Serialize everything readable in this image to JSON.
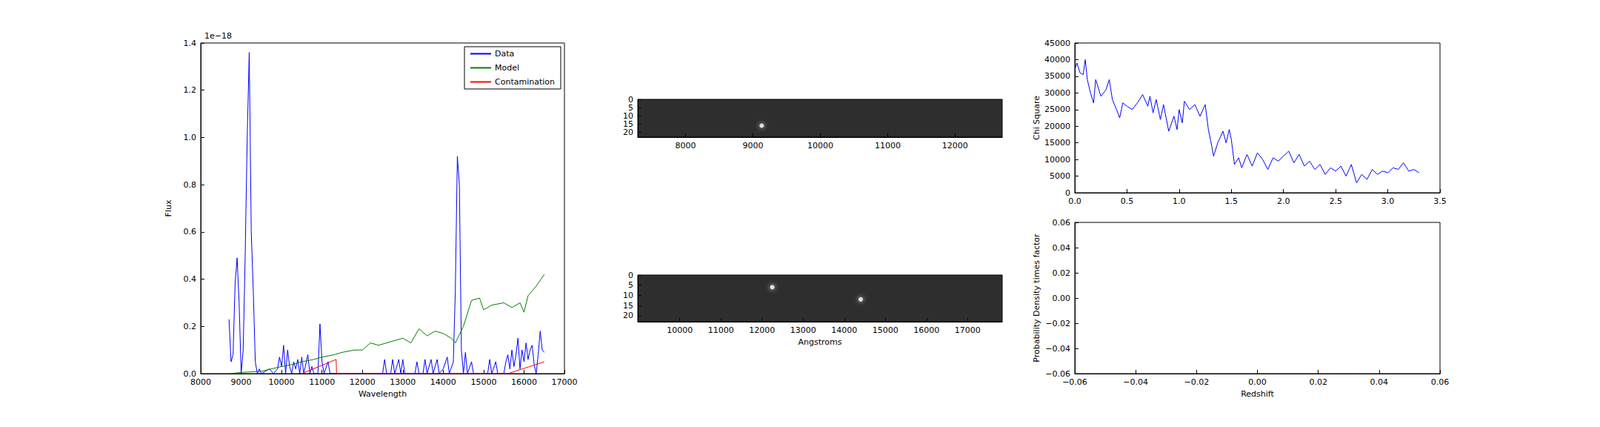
{
  "chart_data": [
    {
      "type": "line",
      "xlabel": "Wavelength",
      "ylabel": "Flux",
      "offset_label": "1e−18",
      "xlim": [
        8000,
        17000
      ],
      "xticks": [
        8000,
        9000,
        10000,
        11000,
        12000,
        13000,
        14000,
        15000,
        16000,
        17000
      ],
      "ylim": [
        0,
        1.4
      ],
      "yticks": [
        {
          "value": 0,
          "label": "0.0"
        },
        0.2,
        0.4,
        0.6,
        0.8,
        {
          "value": 1,
          "label": "1.0"
        },
        1.2,
        1.4
      ],
      "grid": false,
      "legend": "upper right",
      "series": [
        {
          "name": "Data",
          "color": "#0000ff",
          "x": [
            8700,
            8750,
            8800,
            8850,
            8900,
            8950,
            9000,
            9050,
            9100,
            9150,
            9200,
            9250,
            9300,
            9350,
            9400,
            9450,
            9500,
            9600,
            9700,
            9800,
            9900,
            9950,
            10000,
            10050,
            10100,
            10150,
            10200,
            10250,
            10300,
            10350,
            10400,
            10450,
            10500,
            10550,
            10600,
            10650,
            10700,
            10750,
            10800,
            10900,
            10950,
            11000,
            11050,
            11150,
            11200,
            11400,
            11500,
            12000,
            12500,
            12550,
            12600,
            12700,
            12750,
            12800,
            12900,
            12950,
            13000,
            13050,
            13300,
            13350,
            13400,
            13500,
            13550,
            13600,
            13700,
            13750,
            13850,
            13900,
            14000,
            14100,
            14150,
            14250,
            14300,
            14350,
            14400,
            14450,
            14500,
            14550,
            14600,
            14700,
            14750,
            15000,
            15100,
            15150,
            15200,
            15300,
            15350,
            15500,
            15550,
            15600,
            15650,
            15700,
            15750,
            15800,
            15850,
            15900,
            15950,
            16000,
            16050,
            16100,
            16150,
            16200,
            16250,
            16300,
            16350,
            16400,
            16450,
            16500
          ],
          "values": [
            0.23,
            0.05,
            0.08,
            0.38,
            0.49,
            0.3,
            0.0,
            0.1,
            0.5,
            1.0,
            1.36,
            0.6,
            0.35,
            0.05,
            0.0,
            0.02,
            0.0,
            0.01,
            0.02,
            0.0,
            0.02,
            0.07,
            0.03,
            0.12,
            0.0,
            0.1,
            0.03,
            0.0,
            0.05,
            0.02,
            0.06,
            0.0,
            0.07,
            0.0,
            0.04,
            0.08,
            0.0,
            0.03,
            0.0,
            0.0,
            0.21,
            0.05,
            0.0,
            0.05,
            0.0,
            0.0,
            0.0,
            0.0,
            0.0,
            0.06,
            0.0,
            0.0,
            0.06,
            0.0,
            0.06,
            0.0,
            0.06,
            0.0,
            0.0,
            0.05,
            0.0,
            0.0,
            0.06,
            0.0,
            0.06,
            0.0,
            0.06,
            0.0,
            0.02,
            0.07,
            0.0,
            0.05,
            0.35,
            0.92,
            0.8,
            0.1,
            0.0,
            0.09,
            0.0,
            0.05,
            0.0,
            0.0,
            0.0,
            0.06,
            0.0,
            0.05,
            0.0,
            0.0,
            0.05,
            0.08,
            0.02,
            0.1,
            0.03,
            0.08,
            0.15,
            0.02,
            0.1,
            0.05,
            0.13,
            0.06,
            0.1,
            0.12,
            0.04,
            0.0,
            0.08,
            0.18,
            0.1,
            0.09
          ]
        },
        {
          "name": "Model",
          "color": "#008000",
          "x": [
            8700,
            9000,
            9500,
            10000,
            10300,
            10500,
            10800,
            11000,
            11300,
            11500,
            11800,
            12000,
            12200,
            12400,
            12600,
            12800,
            13000,
            13200,
            13400,
            13600,
            13800,
            14000,
            14200,
            14300,
            14500,
            14700,
            14900,
            15000,
            15200,
            15500,
            15700,
            15900,
            16000,
            16100,
            16300,
            16500
          ],
          "values": [
            0.0,
            0.005,
            0.01,
            0.03,
            0.04,
            0.05,
            0.06,
            0.07,
            0.08,
            0.09,
            0.1,
            0.1,
            0.13,
            0.12,
            0.13,
            0.14,
            0.15,
            0.13,
            0.19,
            0.16,
            0.18,
            0.17,
            0.15,
            0.13,
            0.2,
            0.31,
            0.32,
            0.27,
            0.29,
            0.3,
            0.28,
            0.3,
            0.26,
            0.33,
            0.37,
            0.42
          ]
        },
        {
          "name": "Contamination",
          "color": "#ff0000",
          "x": [
            10500,
            11350,
            11360,
            15600,
            16500
          ],
          "values": [
            0.0,
            0.06,
            0.0,
            0.0,
            0.05
          ]
        }
      ]
    },
    {
      "type": "image",
      "xlim": [
        7290,
        12700
      ],
      "xticks": [
        8000,
        9000,
        10000,
        11000,
        12000
      ],
      "ylim": [
        23,
        0
      ],
      "yticks": [
        0,
        5,
        10,
        15,
        20
      ],
      "spots": {
        "x": [
          9130
        ],
        "y": [
          16
        ]
      }
    },
    {
      "type": "image",
      "xlabel": "Angstroms",
      "xlim": [
        8980,
        17840
      ],
      "xticks": [
        10000,
        11000,
        12000,
        13000,
        14000,
        15000,
        16000,
        17000
      ],
      "ylim": [
        23,
        0
      ],
      "yticks": [
        0,
        5,
        10,
        15,
        20
      ],
      "spots": {
        "x": [
          14400,
          12250
        ],
        "y": [
          12,
          6
        ]
      }
    },
    {
      "type": "line",
      "ylabel": "Chi Square",
      "xlim": [
        0,
        3.5
      ],
      "xticks": [
        {
          "value": 0,
          "label": "0.0"
        },
        0.5,
        {
          "value": 1,
          "label": "1.0"
        },
        1.5,
        {
          "value": 2,
          "label": "2.0"
        },
        2.5,
        {
          "value": 3,
          "label": "3.0"
        },
        3.5
      ],
      "ylim": [
        0,
        45000
      ],
      "yticks": [
        0,
        5000,
        10000,
        15000,
        20000,
        25000,
        30000,
        35000,
        40000,
        45000
      ],
      "series": [
        {
          "color": "#0000ff",
          "x": [
            0.0,
            0.02,
            0.05,
            0.08,
            0.1,
            0.12,
            0.15,
            0.18,
            0.2,
            0.25,
            0.3,
            0.33,
            0.36,
            0.4,
            0.43,
            0.46,
            0.5,
            0.55,
            0.6,
            0.65,
            0.7,
            0.72,
            0.75,
            0.78,
            0.82,
            0.85,
            0.9,
            0.95,
            0.98,
            1.0,
            1.03,
            1.05,
            1.1,
            1.15,
            1.2,
            1.25,
            1.28,
            1.3,
            1.33,
            1.37,
            1.42,
            1.45,
            1.48,
            1.5,
            1.53,
            1.57,
            1.6,
            1.65,
            1.7,
            1.75,
            1.8,
            1.85,
            1.9,
            1.95,
            2.0,
            2.05,
            2.1,
            2.15,
            2.2,
            2.25,
            2.3,
            2.35,
            2.4,
            2.45,
            2.5,
            2.55,
            2.6,
            2.65,
            2.7,
            2.75,
            2.8,
            2.85,
            2.9,
            2.95,
            3.0,
            3.05,
            3.1,
            3.15,
            3.2,
            3.25,
            3.3
          ],
          "values": [
            37000,
            39000,
            36000,
            35500,
            40000,
            34000,
            30000,
            27000,
            34000,
            29000,
            31000,
            34000,
            28000,
            25000,
            22500,
            27000,
            26000,
            25000,
            27000,
            29500,
            26000,
            29000,
            24000,
            28000,
            22000,
            26500,
            18500,
            23000,
            19000,
            25000,
            21000,
            27500,
            25000,
            26500,
            23000,
            26500,
            19000,
            16000,
            11000,
            15000,
            18500,
            15000,
            19000,
            16000,
            8500,
            10500,
            7500,
            11500,
            8000,
            12000,
            10000,
            7000,
            10500,
            9500,
            11000,
            12500,
            9000,
            11500,
            8000,
            9500,
            7000,
            8500,
            5500,
            7500,
            6500,
            8000,
            5000,
            8500,
            3000,
            5500,
            4000,
            7000,
            5500,
            6500,
            6000,
            7500,
            7000,
            9000,
            6500,
            7000,
            6000
          ]
        }
      ]
    },
    {
      "type": "line",
      "xlabel": "Redshift",
      "ylabel": "Probability Density times factor",
      "xlim": [
        -0.06,
        0.06
      ],
      "xticks": [
        {
          "value": -0.06,
          "label": "−0.06"
        },
        {
          "value": -0.04,
          "label": "−0.04"
        },
        {
          "value": -0.02,
          "label": "−0.02"
        },
        {
          "value": 0,
          "label": "0.00"
        },
        0.02,
        0.04,
        0.06
      ],
      "ylim": [
        -0.06,
        0.06
      ],
      "yticks": [
        {
          "value": -0.06,
          "label": "−0.06"
        },
        {
          "value": -0.04,
          "label": "−0.04"
        },
        {
          "value": -0.02,
          "label": "−0.02"
        },
        {
          "value": 0,
          "label": "0.00"
        },
        0.02,
        0.04,
        0.06
      ],
      "series": []
    }
  ]
}
